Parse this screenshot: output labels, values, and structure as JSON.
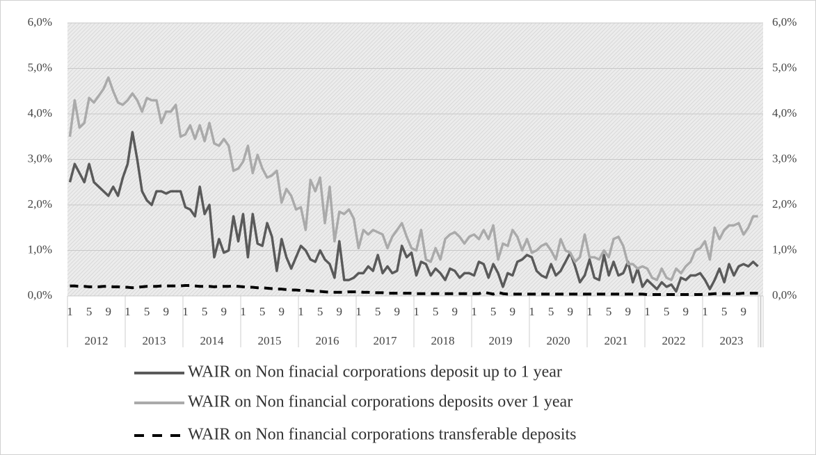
{
  "chart_data": {
    "type": "line",
    "categories": [
      "1",
      null,
      null,
      null,
      "5",
      null,
      null,
      null,
      "9",
      null,
      null,
      null,
      "1",
      null,
      null,
      null,
      "5",
      null,
      null,
      null,
      "9",
      null,
      null,
      null,
      "1",
      null,
      null,
      null,
      "5",
      null,
      null,
      null,
      "9",
      null,
      null,
      null,
      "1",
      null,
      null,
      null,
      "5",
      null,
      null,
      null,
      "9",
      null,
      null,
      null,
      "1",
      null,
      null,
      null,
      "5",
      null,
      null,
      null,
      "9",
      null,
      null,
      null,
      "1",
      null,
      null,
      null,
      "5",
      null,
      null,
      null,
      "9",
      null,
      null,
      null,
      "1",
      null,
      null,
      null,
      "5",
      null,
      null,
      null,
      "9",
      null,
      null,
      null,
      "1",
      null,
      null,
      null,
      "5",
      null,
      null,
      null,
      "9",
      null,
      null,
      null,
      "1",
      null,
      null,
      null,
      "5",
      null,
      null,
      null,
      "9",
      null,
      null,
      null,
      "1",
      null,
      null,
      null,
      "5",
      null,
      null,
      null,
      "9",
      null,
      null,
      null,
      "1",
      null,
      null,
      null,
      "5",
      null,
      null,
      null,
      "9",
      null,
      null,
      null,
      "1",
      null,
      null,
      null,
      "5",
      null,
      null,
      null,
      "9",
      null,
      null,
      null
    ],
    "year_labels": [
      "2012",
      "2013",
      "2014",
      "2015",
      "2016",
      "2017",
      "2018",
      "2019",
      "2020",
      "2021",
      "2022",
      "2023"
    ],
    "series": [
      {
        "name": "WAIR on Non finacial corporations deposit up to 1 year",
        "color": "#5a5a5a",
        "dashed": false,
        "values": [
          2.5,
          2.9,
          2.7,
          2.5,
          2.9,
          2.5,
          2.4,
          2.3,
          2.2,
          2.4,
          2.2,
          2.6,
          2.9,
          3.6,
          3.0,
          2.3,
          2.1,
          2.0,
          2.3,
          2.3,
          2.25,
          2.3,
          2.3,
          2.3,
          1.95,
          1.9,
          1.75,
          2.4,
          1.8,
          2.0,
          0.85,
          1.25,
          0.95,
          1.0,
          1.75,
          1.2,
          1.8,
          0.85,
          1.8,
          1.15,
          1.1,
          1.6,
          1.3,
          0.55,
          1.25,
          0.85,
          0.6,
          0.85,
          1.1,
          1.0,
          0.8,
          0.75,
          1.0,
          0.8,
          0.7,
          0.4,
          1.2,
          0.35,
          0.35,
          0.4,
          0.5,
          0.5,
          0.65,
          0.55,
          0.9,
          0.5,
          0.65,
          0.5,
          0.55,
          1.1,
          0.85,
          0.95,
          0.45,
          0.75,
          0.7,
          0.45,
          0.6,
          0.5,
          0.35,
          0.6,
          0.55,
          0.4,
          0.5,
          0.5,
          0.45,
          0.75,
          0.7,
          0.4,
          0.7,
          0.5,
          0.2,
          0.5,
          0.45,
          0.75,
          0.8,
          0.9,
          0.85,
          0.55,
          0.45,
          0.4,
          0.7,
          0.45,
          0.55,
          0.75,
          0.95,
          0.65,
          0.3,
          0.45,
          0.8,
          0.4,
          0.35,
          0.9,
          0.45,
          0.75,
          0.45,
          0.5,
          0.75,
          0.3,
          0.6,
          0.2,
          0.35,
          0.25,
          0.15,
          0.3,
          0.2,
          0.25,
          0.1,
          0.4,
          0.35,
          0.45,
          0.45,
          0.5,
          0.35,
          0.15,
          0.35,
          0.6,
          0.3,
          0.7,
          0.45,
          0.65,
          0.7,
          0.65,
          0.75,
          0.65
        ]
      },
      {
        "name": "WAIR on Non financial corporations deposits over 1 year",
        "color": "#aaaaaa",
        "dashed": false,
        "values": [
          3.5,
          4.3,
          3.7,
          3.8,
          4.35,
          4.25,
          4.4,
          4.55,
          4.8,
          4.5,
          4.25,
          4.2,
          4.3,
          4.45,
          4.3,
          4.05,
          4.35,
          4.3,
          4.3,
          3.8,
          4.05,
          4.05,
          4.2,
          3.5,
          3.55,
          3.75,
          3.45,
          3.75,
          3.4,
          3.8,
          3.35,
          3.3,
          3.45,
          3.3,
          2.75,
          2.8,
          2.95,
          3.3,
          2.7,
          3.1,
          2.8,
          2.6,
          2.65,
          2.75,
          2.05,
          2.35,
          2.2,
          1.9,
          1.95,
          1.45,
          2.55,
          2.3,
          2.6,
          1.6,
          2.4,
          1.2,
          1.85,
          1.8,
          1.9,
          1.7,
          1.05,
          1.45,
          1.35,
          1.45,
          1.4,
          1.35,
          1.05,
          1.3,
          1.45,
          1.6,
          1.3,
          1.05,
          1.0,
          1.45,
          0.8,
          0.75,
          1.05,
          0.8,
          1.25,
          1.35,
          1.4,
          1.3,
          1.15,
          1.3,
          1.35,
          1.25,
          1.45,
          1.25,
          1.55,
          0.8,
          1.15,
          1.1,
          1.45,
          1.3,
          1.0,
          1.25,
          0.95,
          1.0,
          1.1,
          1.15,
          1.0,
          0.8,
          1.25,
          1.0,
          0.95,
          0.75,
          0.85,
          1.35,
          0.85,
          0.85,
          0.8,
          1.0,
          0.85,
          1.25,
          1.3,
          1.1,
          0.7,
          0.7,
          0.6,
          0.65,
          0.6,
          0.4,
          0.35,
          0.6,
          0.4,
          0.35,
          0.6,
          0.5,
          0.65,
          0.75,
          1.0,
          1.05,
          1.2,
          0.8,
          1.5,
          1.25,
          1.45,
          1.55,
          1.55,
          1.6,
          1.35,
          1.5,
          1.75,
          1.75
        ]
      },
      {
        "name": "WAIR on Non financial corporations transferable deposits",
        "color": "#000000",
        "dashed": true,
        "values": [
          0.22,
          0.22,
          0.21,
          0.21,
          0.2,
          0.2,
          0.2,
          0.21,
          0.21,
          0.2,
          0.2,
          0.19,
          0.19,
          0.18,
          0.19,
          0.2,
          0.21,
          0.21,
          0.21,
          0.22,
          0.22,
          0.22,
          0.22,
          0.22,
          0.23,
          0.23,
          0.22,
          0.21,
          0.21,
          0.21,
          0.2,
          0.21,
          0.21,
          0.21,
          0.22,
          0.21,
          0.2,
          0.19,
          0.19,
          0.18,
          0.18,
          0.17,
          0.16,
          0.15,
          0.15,
          0.14,
          0.13,
          0.13,
          0.12,
          0.12,
          0.11,
          0.1,
          0.1,
          0.09,
          0.08,
          0.08,
          0.08,
          0.08,
          0.09,
          0.09,
          0.09,
          0.08,
          0.08,
          0.07,
          0.07,
          0.07,
          0.06,
          0.06,
          0.06,
          0.06,
          0.06,
          0.06,
          0.05,
          0.05,
          0.05,
          0.05,
          0.05,
          0.05,
          0.05,
          0.05,
          0.05,
          0.05,
          0.05,
          0.05,
          0.05,
          0.05,
          0.08,
          0.06,
          0.04,
          0.08,
          0.05,
          0.04,
          0.04,
          0.04,
          0.04,
          0.04,
          0.04,
          0.04,
          0.04,
          0.04,
          0.04,
          0.04,
          0.04,
          0.04,
          0.04,
          0.04,
          0.04,
          0.04,
          0.04,
          0.04,
          0.04,
          0.04,
          0.04,
          0.04,
          0.04,
          0.04,
          0.04,
          0.04,
          0.04,
          0.04,
          0.03,
          0.03,
          0.03,
          0.03,
          0.03,
          0.03,
          0.03,
          0.03,
          0.03,
          0.03,
          0.03,
          0.03,
          0.04,
          0.04,
          0.05,
          0.05,
          0.05,
          0.05,
          0.05,
          0.05,
          0.06,
          0.06,
          0.06,
          0.06
        ]
      }
    ],
    "ylim": [
      0,
      6
    ],
    "yticks": [
      {
        "value": 0,
        "label": "0,0%"
      },
      {
        "value": 1,
        "label": "1,0%"
      },
      {
        "value": 2,
        "label": "2,0%"
      },
      {
        "value": 3,
        "label": "3,0%"
      },
      {
        "value": 4,
        "label": "4,0%"
      },
      {
        "value": 5,
        "label": "5,0%"
      },
      {
        "value": 6,
        "label": "6,0%"
      }
    ],
    "y2lim": [
      0,
      6
    ],
    "y2ticks": [
      {
        "value": 0,
        "label": "0,0%"
      },
      {
        "value": 1,
        "label": "1,0%"
      },
      {
        "value": 2,
        "label": "2,0%"
      },
      {
        "value": 3,
        "label": "3,0%"
      },
      {
        "value": 4,
        "label": "4,0%"
      },
      {
        "value": 5,
        "label": "5,0%"
      },
      {
        "value": 6,
        "label": "6,0%"
      }
    ],
    "grid": true
  }
}
